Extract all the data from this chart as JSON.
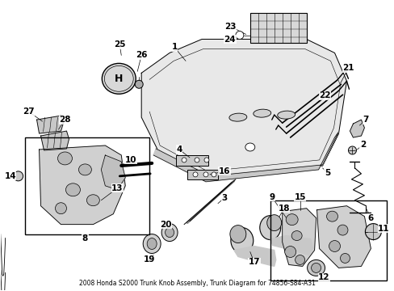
{
  "title": "2008 Honda S2000 Trunk Knob Assembly, Trunk Diagram for 74856-S84-A31",
  "bg_color": "#ffffff",
  "text_color": "#000000",
  "figsize": [
    4.89,
    3.6
  ],
  "dpi": 100
}
